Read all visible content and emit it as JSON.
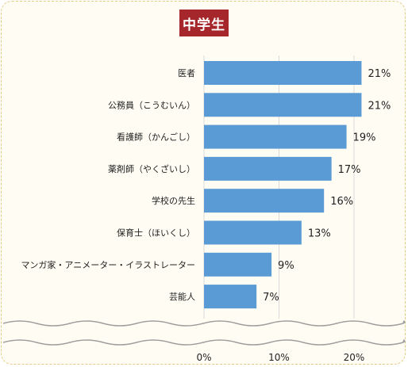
{
  "chart_data": {
    "type": "bar",
    "orientation": "horizontal",
    "title": "中学生",
    "title_color": "#a5272b",
    "bar_color": "#5b9bd5",
    "categories": [
      "医者",
      "公務員（こうむいん）",
      "看護師（かんごし）",
      "薬剤師（やくざいし）",
      "学校の先生",
      "保育士（ほいくし）",
      "マンガ家・アニメーター・イラストレーター",
      "芸能人"
    ],
    "values": [
      21,
      21,
      19,
      17,
      16,
      13,
      9,
      7
    ],
    "value_labels": [
      "21%",
      "21%",
      "19%",
      "17%",
      "16%",
      "13%",
      "9%",
      "7%"
    ],
    "x_ticks": [
      0,
      10,
      20
    ],
    "x_tick_labels": [
      "0%",
      "10%",
      "20%"
    ],
    "xlim": [
      0,
      27
    ],
    "grid": true,
    "axis_break": true
  }
}
